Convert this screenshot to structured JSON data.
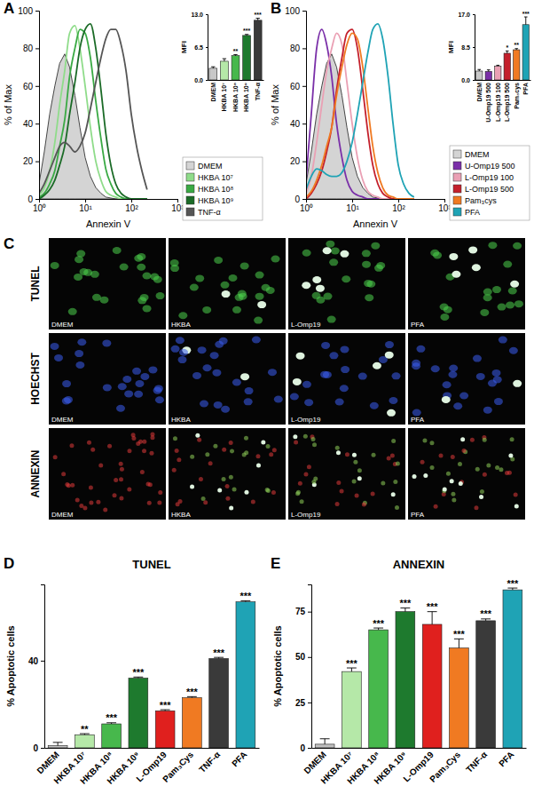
{
  "chart_data": [
    {
      "label": "A",
      "type": "line",
      "x_label": "Annexin V",
      "y_label": "% of Max",
      "log": "x",
      "xlim": [
        1,
        1000
      ],
      "xticks": [
        {
          "value": 1,
          "label": "10⁰"
        },
        {
          "value": 10,
          "label": "10¹"
        },
        {
          "value": 100,
          "label": "10²"
        },
        {
          "value": 1000,
          "label": "10³"
        }
      ],
      "ylim": [
        0,
        100
      ],
      "yticks": [
        0,
        20,
        40,
        60,
        80,
        100
      ],
      "legend": "right",
      "x": [
        1,
        1.3,
        1.7,
        2.2,
        2.8,
        3.6,
        4.6,
        6,
        7.7,
        10,
        13,
        17,
        22,
        28,
        36,
        46,
        60,
        77,
        100,
        130,
        170,
        220
      ],
      "series": [
        {
          "name": "DMEM",
          "type": "area",
          "color": "#d4d4d4",
          "values": [
            8,
            25,
            45,
            60,
            72,
            77,
            70,
            55,
            38,
            22,
            12,
            6,
            3,
            1,
            0.5,
            0,
            0,
            0,
            0,
            0,
            0,
            0
          ]
        },
        {
          "name": "HKBA 10⁷",
          "color": "#8fdc8a",
          "values": [
            2,
            6,
            15,
            30,
            50,
            68,
            88,
            92,
            80,
            60,
            38,
            20,
            10,
            4,
            2,
            1,
            0,
            0,
            0,
            0,
            0,
            0
          ]
        },
        {
          "name": "HKBA 10⁸",
          "color": "#3aaa44",
          "values": [
            1,
            3,
            8,
            15,
            28,
            42,
            65,
            80,
            90,
            88,
            75,
            52,
            32,
            16,
            8,
            3,
            1,
            0,
            0,
            0,
            0,
            0
          ]
        },
        {
          "name": "HKBA 10⁹",
          "color": "#1b6b27",
          "values": [
            0,
            2,
            5,
            10,
            18,
            28,
            45,
            62,
            80,
            90,
            93,
            80,
            58,
            35,
            18,
            8,
            3,
            1,
            0,
            0,
            0,
            0
          ]
        },
        {
          "name": "TNF-α",
          "color": "#555555",
          "values": [
            3,
            8,
            15,
            22,
            28,
            30,
            28,
            25,
            28,
            35,
            48,
            62,
            75,
            85,
            90,
            90,
            82,
            68,
            45,
            28,
            15,
            5
          ]
        }
      ],
      "inset": {
        "type": "bar",
        "y_label": "MFI",
        "categories": [
          "DMEM",
          "HKBA 10⁷",
          "HKBA 10⁸",
          "HKBA 10⁹",
          "TNF-α"
        ],
        "values": [
          2.3,
          3.7,
          4.8,
          8.8,
          11.8
        ],
        "errors": [
          0.3,
          0.5,
          0.2,
          0.2,
          0.4
        ],
        "colors": [
          "#c8c8c8",
          "#b5e8a8",
          "#47b84c",
          "#1e7a2e",
          "#3a3a3a"
        ],
        "annotations": [
          null,
          null,
          "**",
          "***",
          "***"
        ],
        "ylim": [
          0,
          13
        ],
        "yticks": [
          {
            "value": 0,
            "label": "0.0"
          },
          6.5,
          {
            "value": 13,
            "label": "13.0"
          }
        ]
      }
    },
    {
      "label": "B",
      "type": "line",
      "x_label": "Annexin V",
      "y_label": "% of Max",
      "log": "x",
      "xlim": [
        1,
        1000
      ],
      "xticks": [
        {
          "value": 1,
          "label": "10⁰"
        },
        {
          "value": 10,
          "label": "10¹"
        },
        {
          "value": 100,
          "label": "10²"
        },
        {
          "value": 1000,
          "label": "10³"
        }
      ],
      "ylim": [
        0,
        100
      ],
      "yticks": [
        0,
        20,
        40,
        60,
        80,
        100
      ],
      "legend": "right",
      "x": [
        1,
        1.3,
        1.7,
        2.2,
        2.8,
        3.6,
        4.6,
        6,
        7.7,
        10,
        13,
        17,
        22,
        28,
        36,
        46,
        60,
        77,
        100,
        130,
        170,
        220
      ],
      "series": [
        {
          "name": "DMEM",
          "type": "area",
          "color": "#d4d4d4",
          "values": [
            8,
            25,
            45,
            60,
            72,
            77,
            70,
            55,
            38,
            22,
            12,
            6,
            3,
            1,
            0.5,
            0,
            0,
            0,
            0,
            0,
            0,
            0
          ]
        },
        {
          "name": "U-Omp19 500",
          "color": "#7a2fa8",
          "values": [
            10,
            45,
            80,
            90,
            82,
            65,
            40,
            22,
            10,
            4,
            2,
            1,
            0,
            0,
            0,
            0,
            0,
            0,
            0,
            0,
            0,
            0
          ]
        },
        {
          "name": "L-Omp19 100",
          "color": "#eaa0b4",
          "values": [
            3,
            12,
            30,
            50,
            68,
            80,
            88,
            82,
            62,
            40,
            22,
            10,
            4,
            2,
            1,
            0,
            0,
            0,
            0,
            0,
            0,
            0
          ]
        },
        {
          "name": "L-Omp19 500",
          "color": "#c4202c",
          "values": [
            0,
            3,
            8,
            15,
            25,
            38,
            58,
            75,
            88,
            90,
            80,
            58,
            35,
            18,
            8,
            3,
            1,
            0,
            0,
            0,
            0,
            0
          ]
        },
        {
          "name": "Pam₃cys",
          "color": "#f07a22",
          "values": [
            1,
            4,
            10,
            18,
            28,
            38,
            55,
            70,
            82,
            88,
            85,
            70,
            48,
            28,
            14,
            6,
            2,
            1,
            0,
            0,
            0,
            0
          ]
        },
        {
          "name": "PFA",
          "color": "#1fa3b5",
          "values": [
            5,
            12,
            16,
            15,
            13,
            12,
            12,
            14,
            20,
            30,
            45,
            62,
            78,
            90,
            93,
            85,
            65,
            40,
            18,
            8,
            3,
            1
          ]
        }
      ],
      "inset": {
        "type": "bar",
        "y_label": "MFI",
        "categories": [
          "DMEM",
          "U-Omp19 500",
          "L-Omp19 100",
          "L-Omp19 500",
          "Pam₃cys",
          "PFA"
        ],
        "values": [
          2.3,
          2.2,
          3.6,
          6.9,
          7.8,
          14.3
        ],
        "errors": [
          0.4,
          0.4,
          0.2,
          0.6,
          0.3,
          2.0
        ],
        "colors": [
          "#c8c8c8",
          "#7a2fa8",
          "#eaa0b4",
          "#c4202c",
          "#f07a22",
          "#1fa3b5"
        ],
        "annotations": [
          null,
          null,
          null,
          "*",
          "**",
          "***"
        ],
        "ylim": [
          0,
          17
        ],
        "yticks": [
          {
            "value": 0,
            "label": "0.0"
          },
          8.5,
          {
            "value": 17,
            "label": "17.0"
          }
        ]
      }
    },
    {
      "label": "C",
      "type": "image_grid",
      "rows": [
        "TUNEL",
        "HOECHST",
        "ANNEXIN"
      ],
      "columns": [
        "DMEM",
        "HKBA",
        "L-Omp19",
        "PFA"
      ]
    },
    {
      "label": "D",
      "type": "bar",
      "title": "TUNEL",
      "y_label": "% Apoptotic cells",
      "categories": [
        "DMEM",
        "HKBA 10⁷",
        "HKBA 10⁸",
        "HKBA 10⁹",
        "L-Omp19",
        "Pam₃Cys",
        "TNF-α",
        "PFA"
      ],
      "values": [
        1,
        6,
        11,
        32,
        17,
        23,
        41,
        67
      ],
      "errors": [
        1.5,
        0.5,
        0.5,
        0.5,
        0.5,
        0.5,
        0.5,
        0.5
      ],
      "colors": [
        "#bfbfbf",
        "#b5e8a8",
        "#47b84c",
        "#1e7a2e",
        "#e0201e",
        "#f07a22",
        "#3a3a3a",
        "#1fa3b5"
      ],
      "annotations": [
        null,
        "**",
        "***",
        "***",
        "***",
        "***",
        "***",
        "***"
      ],
      "ylim": [
        0,
        75
      ],
      "yticks": [
        0,
        40
      ]
    },
    {
      "label": "E",
      "type": "bar",
      "title": "ANNEXIN",
      "y_label": "% Apoptotic cells",
      "categories": [
        "DMEM",
        "HKBA 10⁷",
        "HKBA 10⁸",
        "HKBA 10⁹",
        "L-Omp19",
        "Pam₃Cys",
        "TNF-α",
        "PFA"
      ],
      "values": [
        2,
        42,
        65,
        75,
        68,
        55,
        70,
        87
      ],
      "errors": [
        3,
        2,
        1,
        2,
        7,
        5,
        1,
        1
      ],
      "colors": [
        "#bfbfbf",
        "#b5e8a8",
        "#47b84c",
        "#1e7a2e",
        "#e0201e",
        "#f07a22",
        "#3a3a3a",
        "#1fa3b5"
      ],
      "annotations": [
        null,
        "***",
        "***",
        "***",
        "***",
        "***",
        "***",
        "***"
      ],
      "ylim": [
        0,
        90
      ],
      "yticks": [
        0,
        25,
        50,
        75
      ]
    }
  ]
}
